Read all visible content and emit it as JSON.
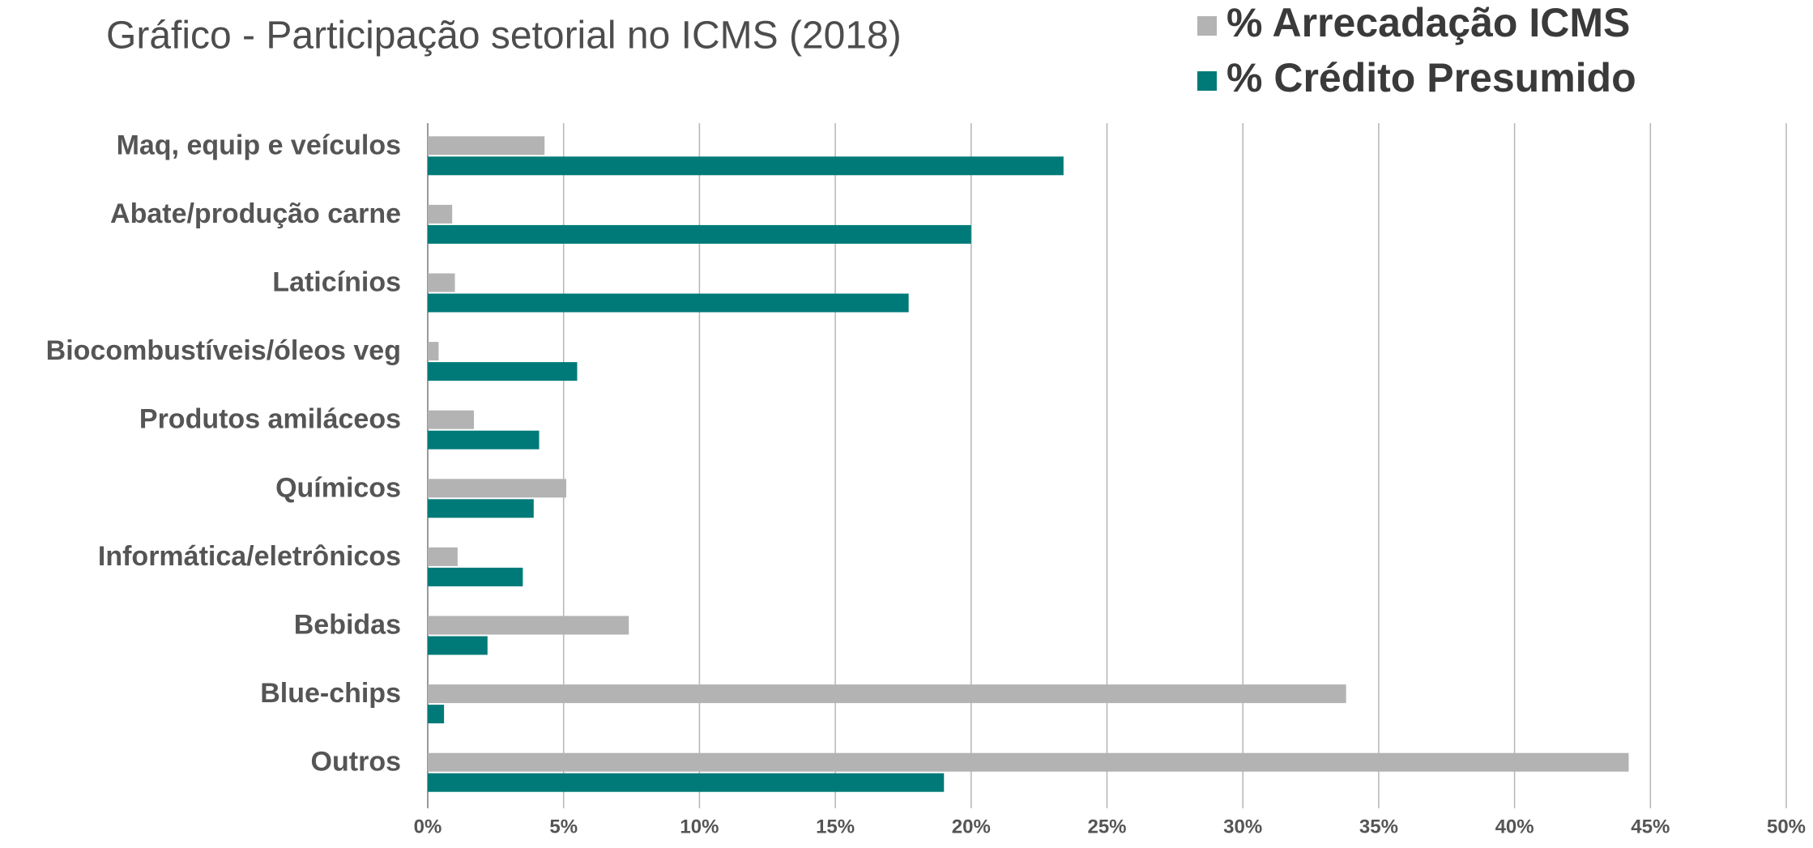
{
  "chart_data": {
    "type": "bar",
    "orientation": "horizontal",
    "title": "Gráfico - Participação setorial no ICMS (2018)",
    "categories": [
      "Maq, equip e veículos",
      "Abate/produção carne",
      "Laticínios",
      "Biocombustíveis/óleos veg",
      "Produtos amiláceos",
      "Químicos",
      "Informática/eletrônicos",
      "Bebidas",
      "Blue-chips",
      "Outros"
    ],
    "series": [
      {
        "name": "% Arrecadação ICMS",
        "color": "#b3b3b3",
        "values": [
          4.3,
          0.9,
          1.0,
          0.4,
          1.7,
          5.1,
          1.1,
          7.4,
          33.8,
          44.2
        ]
      },
      {
        "name": "% Crédito Presumido",
        "color": "#007a78",
        "values": [
          23.4,
          20.0,
          17.7,
          5.5,
          4.1,
          3.9,
          3.5,
          2.2,
          0.6,
          19.0
        ]
      }
    ],
    "xlim": [
      0,
      50
    ],
    "xticks": [
      {
        "value": 0,
        "label": "0%"
      },
      {
        "value": 5,
        "label": "5%"
      },
      {
        "value": 10,
        "label": "10%"
      },
      {
        "value": 15,
        "label": "15%"
      },
      {
        "value": 20,
        "label": "20%"
      },
      {
        "value": 25,
        "label": "25%"
      },
      {
        "value": 30,
        "label": "30%"
      },
      {
        "value": 35,
        "label": "35%"
      },
      {
        "value": 40,
        "label": "40%"
      },
      {
        "value": 45,
        "label": "45%"
      },
      {
        "value": 50,
        "label": "50%"
      }
    ],
    "grid": true,
    "legend": "top-right"
  }
}
